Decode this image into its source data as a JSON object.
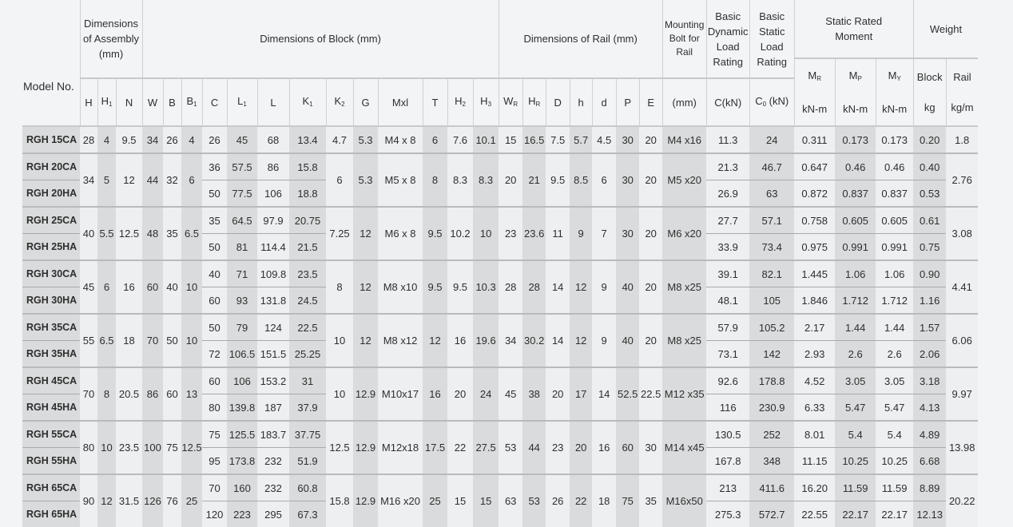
{
  "header": {
    "model": "Model No.",
    "assembly": "Dimensions of Assembly (mm)",
    "block": "Dimensions of Block (mm)",
    "rail": "Dimensions of Rail (mm)",
    "bolt": "Mounting Bolt for Rail",
    "dynamic": "Basic Dynamic Load Rating",
    "static": "Basic Static Load Rating",
    "moment": "Static Rated Moment",
    "weight": "Weight",
    "cols": [
      {
        "t": "H"
      },
      {
        "t": "H",
        "sub": "1"
      },
      {
        "t": "N"
      },
      {
        "t": "W"
      },
      {
        "t": "B"
      },
      {
        "t": "B",
        "sub": "1"
      },
      {
        "t": "C"
      },
      {
        "t": "L",
        "sub": "1"
      },
      {
        "t": "L"
      },
      {
        "t": "K",
        "sub": "1"
      },
      {
        "t": "K",
        "sub": "2"
      },
      {
        "t": "G"
      },
      {
        "t": "Mxl"
      },
      {
        "t": "T"
      },
      {
        "t": "H",
        "sub": "2"
      },
      {
        "t": "H",
        "sub": "3"
      },
      {
        "t": "W",
        "sub": "R"
      },
      {
        "t": "H",
        "sub": "R"
      },
      {
        "t": "D"
      },
      {
        "t": "h"
      },
      {
        "t": "d"
      },
      {
        "t": "P"
      },
      {
        "t": "E"
      },
      {
        "t": "(mm)"
      },
      {
        "t": "C(kN)"
      },
      {
        "t": "C",
        "sub": "0",
        "after": " (kN)"
      }
    ],
    "moment_cols": [
      {
        "t": "M",
        "sub": "R",
        "unit": "kN-m"
      },
      {
        "t": "M",
        "sub": "P",
        "unit": "kN-m"
      },
      {
        "t": "M",
        "sub": "Y",
        "unit": "kN-m"
      }
    ],
    "weight_cols": [
      {
        "t": "Block",
        "unit": "kg"
      },
      {
        "t": "Rail",
        "unit": "kg/m"
      }
    ]
  },
  "groups": [
    {
      "shared": {
        "H": "28",
        "H1": "4",
        "N": "9.5",
        "W": "34",
        "B": "26",
        "B1": "4",
        "K2": "4.7",
        "G": "5.3",
        "MxL": "M4 x 8",
        "T": "6",
        "H2": "7.6",
        "H3": "10.1",
        "WR": "15",
        "HR": "16.5",
        "D": "7.5",
        "h": "5.7",
        "d": "4.5",
        "P": "30",
        "E": "20",
        "bolt": "M4 x16",
        "rail": "1.8"
      },
      "variants": [
        {
          "model": "RGH 15CA",
          "C": "26",
          "L1": "45",
          "L": "68",
          "K1": "13.4",
          "Cdyn": "11.3",
          "C0": "24",
          "MR": "0.311",
          "MP": "0.173",
          "MY": "0.173",
          "block": "0.20"
        }
      ]
    },
    {
      "shared": {
        "H": "34",
        "H1": "5",
        "N": "12",
        "W": "44",
        "B": "32",
        "B1": "6",
        "K2": "6",
        "G": "5.3",
        "MxL": "M5 x 8",
        "T": "8",
        "H2": "8.3",
        "H3": "8.3",
        "WR": "20",
        "HR": "21",
        "D": "9.5",
        "h": "8.5",
        "d": "6",
        "P": "30",
        "E": "20",
        "bolt": "M5 x20",
        "rail": "2.76"
      },
      "variants": [
        {
          "model": "RGH 20CA",
          "C": "36",
          "L1": "57.5",
          "L": "86",
          "K1": "15.8",
          "Cdyn": "21.3",
          "C0": "46.7",
          "MR": "0.647",
          "MP": "0.46",
          "MY": "0.46",
          "block": "0.40"
        },
        {
          "model": "RGH 20HA",
          "C": "50",
          "L1": "77.5",
          "L": "106",
          "K1": "18.8",
          "Cdyn": "26.9",
          "C0": "63",
          "MR": "0.872",
          "MP": "0.837",
          "MY": "0.837",
          "block": "0.53"
        }
      ]
    },
    {
      "shared": {
        "H": "40",
        "H1": "5.5",
        "N": "12.5",
        "W": "48",
        "B": "35",
        "B1": "6.5",
        "K2": "7.25",
        "G": "12",
        "MxL": "M6 x 8",
        "T": "9.5",
        "H2": "10.2",
        "H3": "10",
        "WR": "23",
        "HR": "23.6",
        "D": "11",
        "h": "9",
        "d": "7",
        "P": "30",
        "E": "20",
        "bolt": "M6 x20",
        "rail": "3.08"
      },
      "variants": [
        {
          "model": "RGH 25CA",
          "C": "35",
          "L1": "64.5",
          "L": "97.9",
          "K1": "20.75",
          "Cdyn": "27.7",
          "C0": "57.1",
          "MR": "0.758",
          "MP": "0.605",
          "MY": "0.605",
          "block": "0.61"
        },
        {
          "model": "RGH 25HA",
          "C": "50",
          "L1": "81",
          "L": "114.4",
          "K1": "21.5",
          "Cdyn": "33.9",
          "C0": "73.4",
          "MR": "0.975",
          "MP": "0.991",
          "MY": "0.991",
          "block": "0.75"
        }
      ]
    },
    {
      "shared": {
        "H": "45",
        "H1": "6",
        "N": "16",
        "W": "60",
        "B": "40",
        "B1": "10",
        "K2": "8",
        "G": "12",
        "MxL": "M8 x10",
        "T": "9.5",
        "H2": "9.5",
        "H3": "10.3",
        "WR": "28",
        "HR": "28",
        "D": "14",
        "h": "12",
        "d": "9",
        "P": "40",
        "E": "20",
        "bolt": "M8 x25",
        "rail": "4.41"
      },
      "variants": [
        {
          "model": "RGH 30CA",
          "C": "40",
          "L1": "71",
          "L": "109.8",
          "K1": "23.5",
          "Cdyn": "39.1",
          "C0": "82.1",
          "MR": "1.445",
          "MP": "1.06",
          "MY": "1.06",
          "block": "0.90"
        },
        {
          "model": "RGH 30HA",
          "C": "60",
          "L1": "93",
          "L": "131.8",
          "K1": "24.5",
          "Cdyn": "48.1",
          "C0": "105",
          "MR": "1.846",
          "MP": "1.712",
          "MY": "1.712",
          "block": "1.16"
        }
      ]
    },
    {
      "shared": {
        "H": "55",
        "H1": "6.5",
        "N": "18",
        "W": "70",
        "B": "50",
        "B1": "10",
        "K2": "10",
        "G": "12",
        "MxL": "M8 x12",
        "T": "12",
        "H2": "16",
        "H3": "19.6",
        "WR": "34",
        "HR": "30.2",
        "D": "14",
        "h": "12",
        "d": "9",
        "P": "40",
        "E": "20",
        "bolt": "M8 x25",
        "rail": "6.06"
      },
      "variants": [
        {
          "model": "RGH 35CA",
          "C": "50",
          "L1": "79",
          "L": "124",
          "K1": "22.5",
          "Cdyn": "57.9",
          "C0": "105.2",
          "MR": "2.17",
          "MP": "1.44",
          "MY": "1.44",
          "block": "1.57"
        },
        {
          "model": "RGH 35HA",
          "C": "72",
          "L1": "106.5",
          "L": "151.5",
          "K1": "25.25",
          "Cdyn": "73.1",
          "C0": "142",
          "MR": "2.93",
          "MP": "2.6",
          "MY": "2.6",
          "block": "2.06"
        }
      ]
    },
    {
      "shared": {
        "H": "70",
        "H1": "8",
        "N": "20.5",
        "W": "86",
        "B": "60",
        "B1": "13",
        "K2": "10",
        "G": "12.9",
        "MxL": "M10x17",
        "T": "16",
        "H2": "20",
        "H3": "24",
        "WR": "45",
        "HR": "38",
        "D": "20",
        "h": "17",
        "d": "14",
        "P": "52.5",
        "E": "22.5",
        "bolt": "M12 x35",
        "rail": "9.97"
      },
      "variants": [
        {
          "model": "RGH 45CA",
          "C": "60",
          "L1": "106",
          "L": "153.2",
          "K1": "31",
          "Cdyn": "92.6",
          "C0": "178.8",
          "MR": "4.52",
          "MP": "3.05",
          "MY": "3.05",
          "block": "3.18"
        },
        {
          "model": "RGH 45HA",
          "C": "80",
          "L1": "139.8",
          "L": "187",
          "K1": "37.9",
          "Cdyn": "116",
          "C0": "230.9",
          "MR": "6.33",
          "MP": "5.47",
          "MY": "5.47",
          "block": "4.13"
        }
      ]
    },
    {
      "shared": {
        "H": "80",
        "H1": "10",
        "N": "23.5",
        "W": "100",
        "B": "75",
        "B1": "12.5",
        "K2": "12.5",
        "G": "12.9",
        "MxL": "M12x18",
        "T": "17.5",
        "H2": "22",
        "H3": "27.5",
        "WR": "53",
        "HR": "44",
        "D": "23",
        "h": "20",
        "d": "16",
        "P": "60",
        "E": "30",
        "bolt": "M14 x45",
        "rail": "13.98"
      },
      "variants": [
        {
          "model": "RGH 55CA",
          "C": "75",
          "L1": "125.5",
          "L": "183.7",
          "K1": "37.75",
          "Cdyn": "130.5",
          "C0": "252",
          "MR": "8.01",
          "MP": "5.4",
          "MY": "5.4",
          "block": "4.89"
        },
        {
          "model": "RGH 55HA",
          "C": "95",
          "L1": "173.8",
          "L": "232",
          "K1": "51.9",
          "Cdyn": "167.8",
          "C0": "348",
          "MR": "11.15",
          "MP": "10.25",
          "MY": "10.25",
          "block": "6.68"
        }
      ]
    },
    {
      "shared": {
        "H": "90",
        "H1": "12",
        "N": "31.5",
        "W": "126",
        "B": "76",
        "B1": "25",
        "K2": "15.8",
        "G": "12.9",
        "MxL": "M16 x20",
        "T": "25",
        "H2": "15",
        "H3": "15",
        "WR": "63",
        "HR": "53",
        "D": "26",
        "h": "22",
        "d": "18",
        "P": "75",
        "E": "35",
        "bolt": "M16x50",
        "rail": "20.22"
      },
      "variants": [
        {
          "model": "RGH 65CA",
          "C": "70",
          "L1": "160",
          "L": "232",
          "K1": "60.8",
          "Cdyn": "213",
          "C0": "411.6",
          "MR": "16.20",
          "MP": "11.59",
          "MY": "11.59",
          "block": "8.89"
        },
        {
          "model": "RGH 65HA",
          "C": "120",
          "L1": "223",
          "L": "295",
          "K1": "67.3",
          "Cdyn": "275.3",
          "C0": "572.7",
          "MR": "22.55",
          "MP": "22.17",
          "MY": "22.17",
          "block": "12.13"
        }
      ]
    }
  ]
}
